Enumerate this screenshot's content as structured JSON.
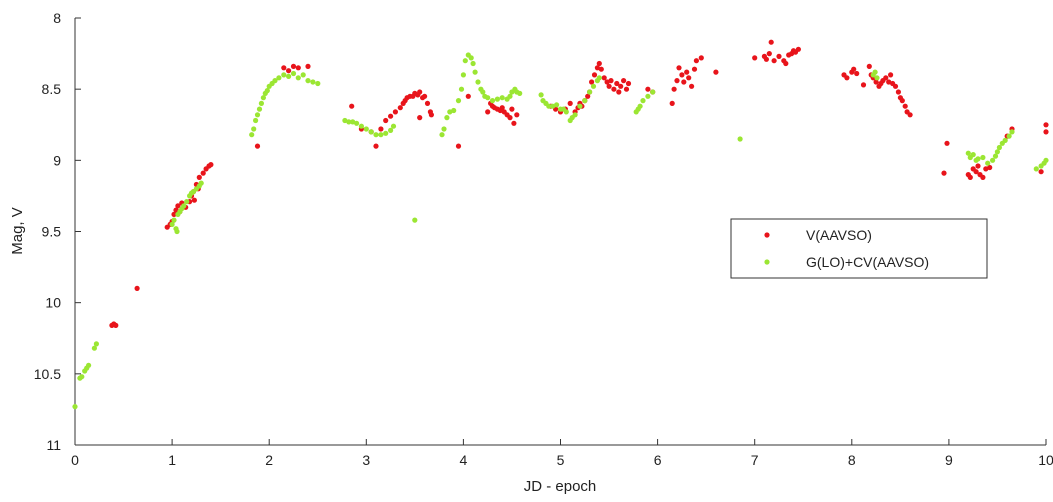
{
  "chart_data": {
    "type": "scatter",
    "title": "",
    "xlabel": "JD - epoch",
    "ylabel": "Mag, V",
    "xlim": [
      0,
      10
    ],
    "ylim": [
      11,
      8
    ],
    "y_inverted": true,
    "xticks": [
      "0",
      "1",
      "2",
      "3",
      "4",
      "5",
      "6",
      "7",
      "8",
      "9",
      "10"
    ],
    "yticks": [
      "8",
      "8.5",
      "9",
      "9.5",
      "10",
      "10.5",
      "11"
    ],
    "legend_placement": "right",
    "grid": false,
    "series": [
      {
        "name": "V(AAVSO)",
        "color": "#e8141b",
        "points": [
          [
            0.38,
            10.16
          ],
          [
            0.4,
            10.15
          ],
          [
            0.42,
            10.16
          ],
          [
            0.64,
            9.9
          ],
          [
            0.95,
            9.47
          ],
          [
            0.98,
            9.45
          ],
          [
            1.0,
            9.43
          ],
          [
            1.02,
            9.38
          ],
          [
            1.04,
            9.35
          ],
          [
            1.06,
            9.32
          ],
          [
            1.08,
            9.36
          ],
          [
            1.1,
            9.3
          ],
          [
            1.14,
            9.33
          ],
          [
            1.18,
            9.29
          ],
          [
            1.2,
            9.25
          ],
          [
            1.22,
            9.22
          ],
          [
            1.25,
            9.17
          ],
          [
            1.28,
            9.12
          ],
          [
            1.32,
            9.09
          ],
          [
            1.35,
            9.06
          ],
          [
            1.38,
            9.04
          ],
          [
            1.4,
            9.03
          ],
          [
            1.23,
            9.28
          ],
          [
            1.27,
            9.2
          ],
          [
            1.88,
            8.9
          ],
          [
            2.15,
            8.35
          ],
          [
            2.2,
            8.37
          ],
          [
            2.25,
            8.34
          ],
          [
            2.3,
            8.35
          ],
          [
            2.4,
            8.34
          ],
          [
            2.85,
            8.62
          ],
          [
            2.95,
            8.78
          ],
          [
            3.05,
            8.8
          ],
          [
            3.1,
            8.9
          ],
          [
            3.15,
            8.78
          ],
          [
            3.2,
            8.72
          ],
          [
            3.25,
            8.69
          ],
          [
            3.3,
            8.66
          ],
          [
            3.35,
            8.63
          ],
          [
            3.38,
            8.6
          ],
          [
            3.4,
            8.58
          ],
          [
            3.42,
            8.56
          ],
          [
            3.45,
            8.55
          ],
          [
            3.48,
            8.55
          ],
          [
            3.5,
            8.53
          ],
          [
            3.53,
            8.54
          ],
          [
            3.55,
            8.52
          ],
          [
            3.58,
            8.56
          ],
          [
            3.6,
            8.55
          ],
          [
            3.63,
            8.6
          ],
          [
            3.66,
            8.66
          ],
          [
            3.67,
            8.68
          ],
          [
            3.55,
            8.7
          ],
          [
            3.95,
            8.9
          ],
          [
            4.05,
            8.55
          ],
          [
            4.28,
            8.6
          ],
          [
            4.3,
            8.62
          ],
          [
            4.32,
            8.63
          ],
          [
            4.35,
            8.64
          ],
          [
            4.38,
            8.65
          ],
          [
            4.4,
            8.63
          ],
          [
            4.42,
            8.66
          ],
          [
            4.45,
            8.68
          ],
          [
            4.48,
            8.7
          ],
          [
            4.5,
            8.64
          ],
          [
            4.52,
            8.74
          ],
          [
            4.55,
            8.68
          ],
          [
            4.25,
            8.66
          ],
          [
            4.9,
            8.62
          ],
          [
            4.95,
            8.64
          ],
          [
            5.0,
            8.66
          ],
          [
            5.05,
            8.64
          ],
          [
            5.1,
            8.6
          ],
          [
            5.15,
            8.66
          ],
          [
            5.18,
            8.63
          ],
          [
            5.2,
            8.6
          ],
          [
            5.22,
            8.62
          ],
          [
            5.25,
            8.58
          ],
          [
            5.28,
            8.55
          ],
          [
            5.3,
            8.52
          ],
          [
            5.32,
            8.45
          ],
          [
            5.35,
            8.4
          ],
          [
            5.38,
            8.35
          ],
          [
            5.4,
            8.32
          ],
          [
            5.42,
            8.36
          ],
          [
            5.45,
            8.42
          ],
          [
            5.48,
            8.45
          ],
          [
            5.5,
            8.48
          ],
          [
            5.52,
            8.44
          ],
          [
            5.55,
            8.5
          ],
          [
            5.58,
            8.46
          ],
          [
            5.6,
            8.52
          ],
          [
            5.62,
            8.48
          ],
          [
            5.65,
            8.44
          ],
          [
            5.68,
            8.5
          ],
          [
            5.7,
            8.46
          ],
          [
            5.9,
            8.5
          ],
          [
            5.95,
            8.52
          ],
          [
            6.15,
            8.6
          ],
          [
            6.17,
            8.5
          ],
          [
            6.2,
            8.44
          ],
          [
            6.22,
            8.35
          ],
          [
            6.25,
            8.4
          ],
          [
            6.27,
            8.45
          ],
          [
            6.3,
            8.38
          ],
          [
            6.32,
            8.42
          ],
          [
            6.35,
            8.48
          ],
          [
            6.38,
            8.36
          ],
          [
            6.4,
            8.3
          ],
          [
            6.45,
            8.28
          ],
          [
            6.6,
            8.38
          ],
          [
            7.0,
            8.28
          ],
          [
            7.1,
            8.27
          ],
          [
            7.12,
            8.29
          ],
          [
            7.15,
            8.25
          ],
          [
            7.17,
            8.17
          ],
          [
            7.2,
            8.3
          ],
          [
            7.25,
            8.27
          ],
          [
            7.3,
            8.3
          ],
          [
            7.32,
            8.32
          ],
          [
            7.35,
            8.26
          ],
          [
            7.38,
            8.25
          ],
          [
            7.4,
            8.23
          ],
          [
            7.42,
            8.24
          ],
          [
            7.45,
            8.22
          ],
          [
            7.92,
            8.4
          ],
          [
            7.95,
            8.42
          ],
          [
            8.0,
            8.38
          ],
          [
            8.02,
            8.36
          ],
          [
            8.05,
            8.39
          ],
          [
            8.12,
            8.47
          ],
          [
            8.18,
            8.34
          ],
          [
            8.2,
            8.4
          ],
          [
            8.22,
            8.42
          ],
          [
            8.25,
            8.45
          ],
          [
            8.28,
            8.48
          ],
          [
            8.3,
            8.46
          ],
          [
            8.32,
            8.44
          ],
          [
            8.35,
            8.42
          ],
          [
            8.38,
            8.45
          ],
          [
            8.4,
            8.4
          ],
          [
            8.42,
            8.46
          ],
          [
            8.45,
            8.48
          ],
          [
            8.48,
            8.52
          ],
          [
            8.5,
            8.56
          ],
          [
            8.52,
            8.58
          ],
          [
            8.55,
            8.62
          ],
          [
            8.57,
            8.66
          ],
          [
            8.6,
            8.68
          ],
          [
            8.95,
            9.09
          ],
          [
            8.98,
            8.88
          ],
          [
            9.2,
            9.1
          ],
          [
            9.22,
            9.12
          ],
          [
            9.25,
            9.06
          ],
          [
            9.28,
            9.08
          ],
          [
            9.3,
            9.04
          ],
          [
            9.32,
            9.1
          ],
          [
            9.35,
            9.12
          ],
          [
            9.38,
            9.06
          ],
          [
            9.42,
            9.05
          ],
          [
            9.6,
            8.83
          ],
          [
            9.65,
            8.78
          ],
          [
            9.95,
            9.08
          ],
          [
            10.0,
            8.75
          ],
          [
            10.0,
            8.8
          ]
        ]
      },
      {
        "name": "G(LO)+CV(AAVSO)",
        "color": "#9be633",
        "points": [
          [
            0.0,
            10.73
          ],
          [
            0.05,
            10.53
          ],
          [
            0.07,
            10.52
          ],
          [
            0.1,
            10.48
          ],
          [
            0.12,
            10.46
          ],
          [
            0.14,
            10.44
          ],
          [
            0.2,
            10.32
          ],
          [
            0.22,
            10.29
          ],
          [
            1.0,
            9.45
          ],
          [
            1.02,
            9.42
          ],
          [
            1.04,
            9.48
          ],
          [
            1.06,
            9.38
          ],
          [
            1.08,
            9.36
          ],
          [
            1.1,
            9.34
          ],
          [
            1.12,
            9.32
          ],
          [
            1.15,
            9.29
          ],
          [
            1.18,
            9.25
          ],
          [
            1.2,
            9.23
          ],
          [
            1.22,
            9.22
          ],
          [
            1.25,
            9.2
          ],
          [
            1.28,
            9.18
          ],
          [
            1.3,
            9.16
          ],
          [
            1.05,
            9.5
          ],
          [
            1.82,
            8.82
          ],
          [
            1.84,
            8.78
          ],
          [
            1.86,
            8.72
          ],
          [
            1.88,
            8.68
          ],
          [
            1.9,
            8.64
          ],
          [
            1.92,
            8.6
          ],
          [
            1.94,
            8.56
          ],
          [
            1.96,
            8.53
          ],
          [
            1.98,
            8.51
          ],
          [
            2.0,
            8.48
          ],
          [
            2.03,
            8.46
          ],
          [
            2.06,
            8.44
          ],
          [
            2.1,
            8.42
          ],
          [
            2.15,
            8.4
          ],
          [
            2.2,
            8.41
          ],
          [
            2.25,
            8.39
          ],
          [
            2.3,
            8.42
          ],
          [
            2.35,
            8.4
          ],
          [
            2.4,
            8.44
          ],
          [
            2.45,
            8.45
          ],
          [
            2.5,
            8.46
          ],
          [
            2.78,
            8.72
          ],
          [
            2.82,
            8.73
          ],
          [
            2.86,
            8.73
          ],
          [
            2.9,
            8.74
          ],
          [
            2.95,
            8.76
          ],
          [
            3.0,
            8.78
          ],
          [
            3.05,
            8.8
          ],
          [
            3.1,
            8.82
          ],
          [
            3.15,
            8.82
          ],
          [
            3.2,
            8.81
          ],
          [
            3.25,
            8.79
          ],
          [
            3.28,
            8.76
          ],
          [
            3.5,
            9.42
          ],
          [
            3.78,
            8.82
          ],
          [
            3.8,
            8.78
          ],
          [
            3.83,
            8.7
          ],
          [
            3.86,
            8.66
          ],
          [
            3.9,
            8.65
          ],
          [
            3.95,
            8.58
          ],
          [
            3.98,
            8.5
          ],
          [
            4.0,
            8.4
          ],
          [
            4.02,
            8.3
          ],
          [
            4.05,
            8.26
          ],
          [
            4.08,
            8.28
          ],
          [
            4.1,
            8.32
          ],
          [
            4.12,
            8.38
          ],
          [
            4.15,
            8.45
          ],
          [
            4.18,
            8.5
          ],
          [
            4.2,
            8.52
          ],
          [
            4.22,
            8.55
          ],
          [
            4.25,
            8.56
          ],
          [
            4.3,
            8.58
          ],
          [
            4.35,
            8.57
          ],
          [
            4.4,
            8.56
          ],
          [
            4.45,
            8.57
          ],
          [
            4.48,
            8.55
          ],
          [
            4.5,
            8.52
          ],
          [
            4.53,
            8.5
          ],
          [
            4.55,
            8.52
          ],
          [
            4.58,
            8.53
          ],
          [
            4.8,
            8.54
          ],
          [
            4.82,
            8.58
          ],
          [
            4.85,
            8.6
          ],
          [
            4.88,
            8.62
          ],
          [
            4.92,
            8.62
          ],
          [
            4.96,
            8.61
          ],
          [
            5.0,
            8.64
          ],
          [
            5.03,
            8.64
          ],
          [
            5.06,
            8.66
          ],
          [
            5.1,
            8.72
          ],
          [
            5.12,
            8.7
          ],
          [
            5.15,
            8.68
          ],
          [
            5.2,
            8.62
          ],
          [
            5.25,
            8.58
          ],
          [
            5.3,
            8.52
          ],
          [
            5.34,
            8.48
          ],
          [
            5.38,
            8.44
          ],
          [
            5.4,
            8.42
          ],
          [
            5.78,
            8.66
          ],
          [
            5.8,
            8.64
          ],
          [
            5.82,
            8.62
          ],
          [
            5.85,
            8.58
          ],
          [
            5.9,
            8.55
          ],
          [
            5.95,
            8.52
          ],
          [
            6.85,
            8.85
          ],
          [
            8.22,
            8.4
          ],
          [
            8.24,
            8.38
          ],
          [
            8.26,
            8.42
          ],
          [
            9.2,
            8.95
          ],
          [
            9.22,
            8.98
          ],
          [
            9.25,
            8.96
          ],
          [
            9.28,
            9.0
          ],
          [
            9.3,
            8.99
          ],
          [
            9.35,
            8.98
          ],
          [
            9.4,
            9.02
          ],
          [
            9.45,
            9.0
          ],
          [
            9.48,
            8.97
          ],
          [
            9.5,
            8.94
          ],
          [
            9.52,
            8.91
          ],
          [
            9.55,
            8.88
          ],
          [
            9.58,
            8.86
          ],
          [
            9.62,
            8.83
          ],
          [
            9.65,
            8.8
          ],
          [
            9.9,
            9.06
          ],
          [
            9.95,
            9.04
          ],
          [
            9.98,
            9.02
          ],
          [
            10.0,
            9.0
          ]
        ]
      }
    ]
  }
}
